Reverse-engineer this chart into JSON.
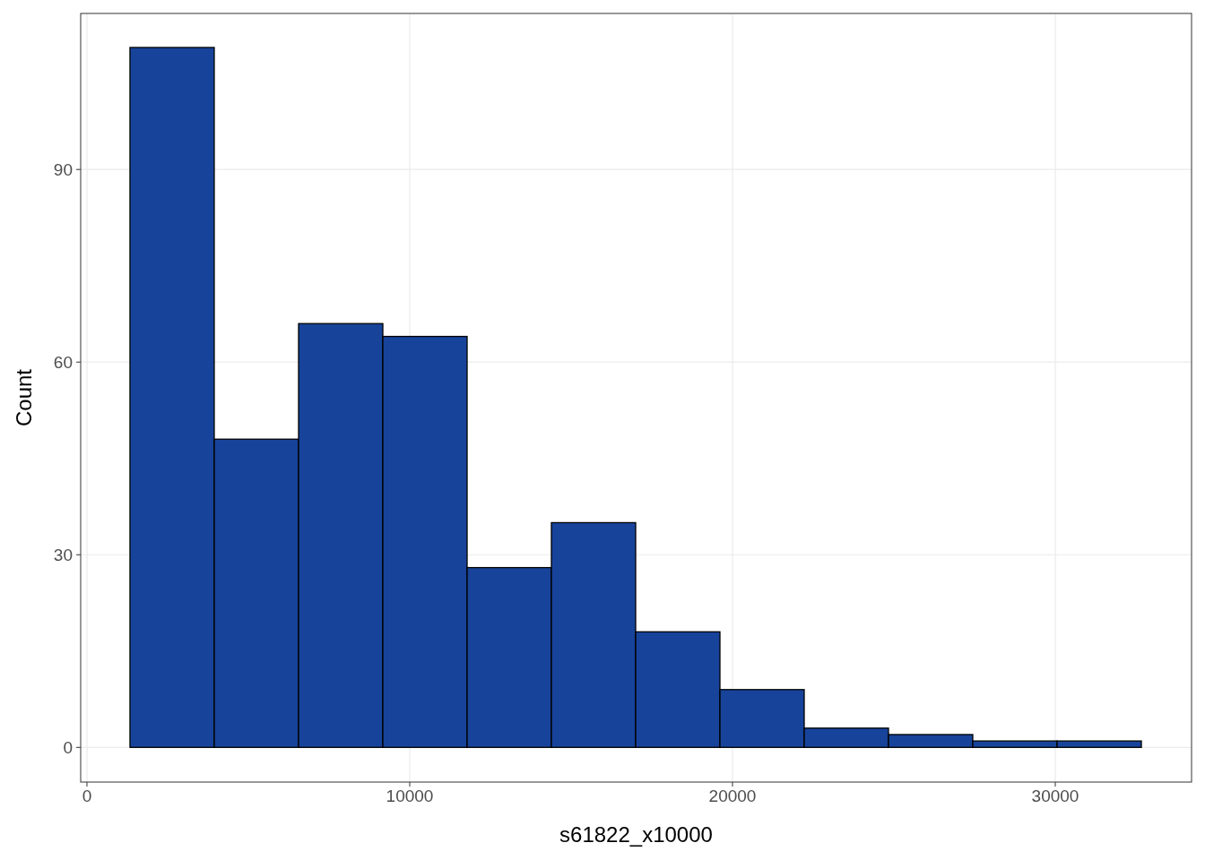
{
  "chart_data": {
    "type": "histogram",
    "xlabel": "s61822_x10000",
    "ylabel": "Count",
    "bins": [
      1333,
      3944,
      6556,
      9167,
      11778,
      14389,
      17000,
      19611,
      22222,
      24833,
      27444,
      30056,
      32667
    ],
    "values": [
      109,
      48,
      66,
      64,
      28,
      35,
      18,
      9,
      3,
      2,
      1,
      1
    ],
    "color": "#17439a",
    "xlim": [
      -194,
      34222
    ],
    "ylim": [
      -5.4,
      114.3
    ],
    "xticks": [
      0,
      10000,
      20000,
      30000
    ],
    "yticks": [
      0,
      30,
      60,
      90
    ],
    "grid": true
  }
}
